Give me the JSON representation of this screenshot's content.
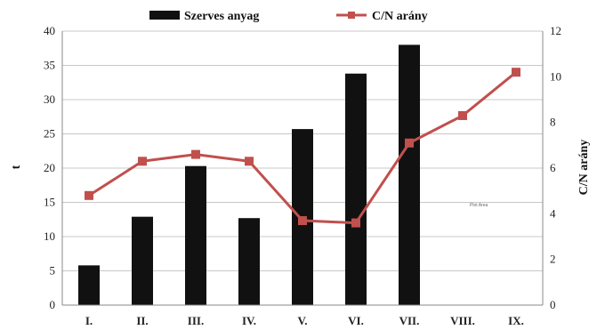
{
  "chart_data": {
    "type": "bar+line",
    "categories": [
      "I.",
      "II.",
      "III.",
      "IV.",
      "V.",
      "VI.",
      "VII.",
      "VIII.",
      "IX."
    ],
    "series": [
      {
        "name": "Szerves anyag",
        "type": "bar",
        "axis": "left",
        "color": "#111111",
        "values": [
          5.8,
          12.9,
          20.3,
          12.7,
          25.7,
          33.8,
          38.0,
          null,
          null
        ]
      },
      {
        "name": "C/N arány",
        "type": "line",
        "axis": "right",
        "color": "#c0504d",
        "values": [
          4.8,
          6.3,
          6.6,
          6.3,
          3.7,
          3.6,
          7.1,
          8.3,
          10.2
        ]
      }
    ],
    "ylabel_left": "t",
    "ylabel_right": "C/N arány",
    "ylim_left": [
      0,
      40
    ],
    "ylim_right": [
      0,
      12
    ],
    "yticks_left": [
      "0",
      "5",
      "10",
      "15",
      "20",
      "25",
      "30",
      "35",
      "40"
    ],
    "yticks_right": [
      "0",
      "2",
      "4",
      "6",
      "8",
      "10",
      "12"
    ],
    "grid": true,
    "legend_position": "top",
    "annotation": "Plot Area"
  }
}
